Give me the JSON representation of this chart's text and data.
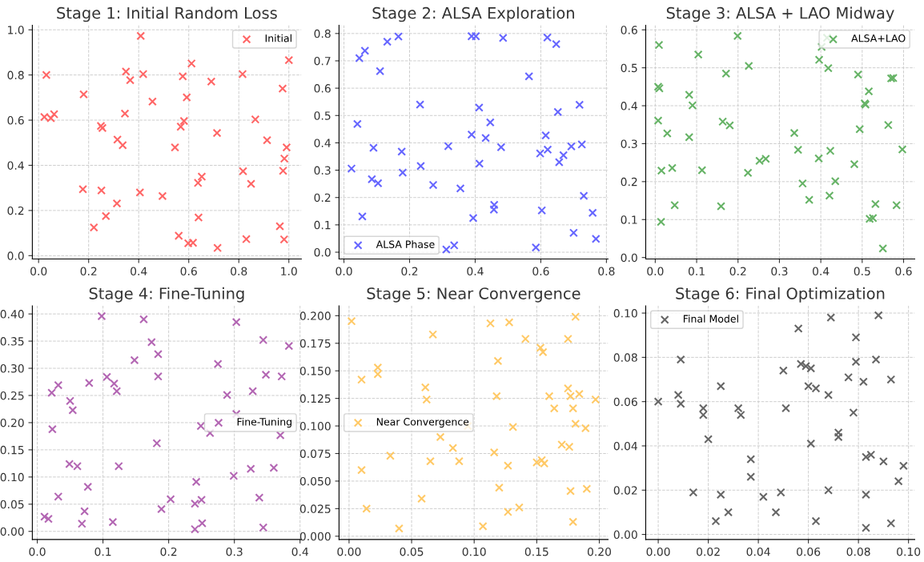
{
  "chart_data": [
    {
      "type": "scatter",
      "title": "Stage 1: Initial Random Loss",
      "legend": "top right",
      "grid": true,
      "marker": "cross",
      "xlim": [
        -0.025,
        1.05
      ],
      "ylim": [
        -0.015,
        1.02
      ],
      "xticks": [
        {
          "value": 0,
          "label": "0.0"
        },
        {
          "value": 0.2,
          "label": "0.2"
        },
        {
          "value": 0.4,
          "label": "0.4"
        },
        {
          "value": 0.6,
          "label": "0.6"
        },
        {
          "value": 0.8,
          "label": "0.8"
        },
        {
          "value": 1,
          "label": "1.0"
        }
      ],
      "yticks": [
        {
          "value": 0,
          "label": "0.0"
        },
        {
          "value": 0.2,
          "label": "0.2"
        },
        {
          "value": 0.4,
          "label": "0.4"
        },
        {
          "value": 0.6,
          "label": "0.6"
        },
        {
          "value": 0.8,
          "label": "0.8"
        },
        {
          "value": 1,
          "label": "1.0"
        }
      ],
      "series": [
        {
          "name": "Initial",
          "color": "#ff6666",
          "x": [
            0.408,
            1.0,
            0.611,
            0.031,
            0.349,
            0.418,
            0.815,
            0.576,
            0.366,
            0.69,
            0.975,
            0.18,
            0.592,
            0.455,
            0.345,
            0.023,
            0.049,
            0.062,
            0.866,
            0.581,
            0.249,
            0.255,
            0.568,
            0.713,
            0.315,
            0.913,
            0.336,
            0.545,
            0.991,
            0.982,
            0.817,
            0.977,
            0.652,
            0.637,
            0.849,
            0.177,
            0.251,
            0.405,
            0.495,
            0.313,
            0.269,
            0.639,
            0.221,
            0.964,
            0.56,
            0.598,
            0.617,
            0.83,
            0.981,
            0.715
          ],
          "values": [
            0.973,
            0.866,
            0.851,
            0.8,
            0.815,
            0.804,
            0.804,
            0.794,
            0.777,
            0.771,
            0.74,
            0.714,
            0.701,
            0.682,
            0.629,
            0.614,
            0.609,
            0.626,
            0.603,
            0.596,
            0.574,
            0.565,
            0.571,
            0.543,
            0.514,
            0.511,
            0.489,
            0.479,
            0.479,
            0.43,
            0.374,
            0.376,
            0.35,
            0.322,
            0.318,
            0.294,
            0.289,
            0.28,
            0.264,
            0.231,
            0.175,
            0.169,
            0.125,
            0.13,
            0.088,
            0.055,
            0.057,
            0.073,
            0.072,
            0.034
          ]
        }
      ]
    },
    {
      "type": "scatter",
      "title": "Stage 2: ALSA Exploration",
      "legend": "bottom left",
      "grid": true,
      "marker": "cross",
      "xlim": [
        -0.015,
        0.805
      ],
      "ylim": [
        -0.025,
        0.83
      ],
      "xticks": [
        {
          "value": 0,
          "label": "0.0"
        },
        {
          "value": 0.2,
          "label": "0.2"
        },
        {
          "value": 0.4,
          "label": "0.4"
        },
        {
          "value": 0.6,
          "label": "0.6"
        },
        {
          "value": 0.8,
          "label": "0.8"
        }
      ],
      "yticks": [
        {
          "value": 0,
          "label": "0.0"
        },
        {
          "value": 0.1,
          "label": "0.1"
        },
        {
          "value": 0.2,
          "label": "0.2"
        },
        {
          "value": 0.3,
          "label": "0.3"
        },
        {
          "value": 0.4,
          "label": "0.4"
        },
        {
          "value": 0.5,
          "label": "0.5"
        },
        {
          "value": 0.6,
          "label": "0.6"
        },
        {
          "value": 0.7,
          "label": "0.7"
        },
        {
          "value": 0.8,
          "label": "0.8"
        }
      ],
      "series": [
        {
          "name": "ALSA Phase",
          "color": "#6666ff",
          "x": [
            0.166,
            0.132,
            0.064,
            0.047,
            0.11,
            0.389,
            0.402,
            0.485,
            0.62,
            0.647,
            0.564,
            0.232,
            0.718,
            0.412,
            0.652,
            0.041,
            0.446,
            0.389,
            0.615,
            0.432,
            0.318,
            0.479,
            0.693,
            0.725,
            0.09,
            0.176,
            0.621,
            0.598,
            0.669,
            0.656,
            0.413,
            0.234,
            0.023,
            0.179,
            0.085,
            0.104,
            0.272,
            0.355,
            0.731,
            0.458,
            0.457,
            0.603,
            0.758,
            0.056,
            0.394,
            0.7,
            0.768,
            0.312,
            0.336,
            0.585
          ],
          "values": [
            0.789,
            0.77,
            0.737,
            0.71,
            0.662,
            0.79,
            0.79,
            0.784,
            0.785,
            0.761,
            0.643,
            0.54,
            0.539,
            0.529,
            0.513,
            0.469,
            0.475,
            0.43,
            0.427,
            0.418,
            0.388,
            0.384,
            0.387,
            0.394,
            0.382,
            0.368,
            0.375,
            0.361,
            0.355,
            0.329,
            0.324,
            0.315,
            0.306,
            0.291,
            0.267,
            0.252,
            0.246,
            0.233,
            0.206,
            0.173,
            0.156,
            0.153,
            0.144,
            0.131,
            0.125,
            0.071,
            0.049,
            0.01,
            0.025,
            0.017
          ]
        }
      ]
    },
    {
      "type": "scatter",
      "title": "Stage 3: ALSA + LAO Midway",
      "legend": "top right",
      "grid": true,
      "marker": "cross",
      "xlim": [
        -0.023,
        0.627
      ],
      "ylim": [
        -0.004,
        0.612
      ],
      "xticks": [
        {
          "value": 0,
          "label": "0.0"
        },
        {
          "value": 0.1,
          "label": "0.1"
        },
        {
          "value": 0.2,
          "label": "0.2"
        },
        {
          "value": 0.3,
          "label": "0.3"
        },
        {
          "value": 0.4,
          "label": "0.4"
        },
        {
          "value": 0.5,
          "label": "0.5"
        },
        {
          "value": 0.6,
          "label": "0.6"
        }
      ],
      "yticks": [
        {
          "value": 0,
          "label": "0.0"
        },
        {
          "value": 0.1,
          "label": "0.1"
        },
        {
          "value": 0.2,
          "label": "0.2"
        },
        {
          "value": 0.3,
          "label": "0.3"
        },
        {
          "value": 0.4,
          "label": "0.4"
        },
        {
          "value": 0.5,
          "label": "0.5"
        },
        {
          "value": 0.6,
          "label": "0.6"
        }
      ],
      "series": [
        {
          "name": "ALSA+LAO",
          "color": "#66b366",
          "x": [
            0.199,
            0.009,
            0.415,
            0.402,
            0.104,
            0.396,
            0.226,
            0.418,
            0.171,
            0.49,
            0.57,
            0.575,
            0.007,
            0.01,
            0.082,
            0.516,
            0.09,
            0.506,
            0.508,
            0.007,
            0.163,
            0.18,
            0.563,
            0.494,
            0.029,
            0.082,
            0.336,
            0.345,
            0.423,
            0.597,
            0.395,
            0.267,
            0.252,
            0.481,
            0.041,
            0.015,
            0.113,
            0.224,
            0.435,
            0.356,
            0.372,
            0.421,
            0.047,
            0.159,
            0.532,
            0.583,
            0.518,
            0.526,
            0.014,
            0.55
          ],
          "values": [
            0.584,
            0.56,
            0.579,
            0.555,
            0.535,
            0.521,
            0.505,
            0.499,
            0.485,
            0.482,
            0.472,
            0.473,
            0.45,
            0.446,
            0.429,
            0.438,
            0.401,
            0.406,
            0.403,
            0.361,
            0.358,
            0.348,
            0.349,
            0.338,
            0.327,
            0.317,
            0.328,
            0.284,
            0.281,
            0.285,
            0.261,
            0.26,
            0.255,
            0.246,
            0.236,
            0.229,
            0.23,
            0.223,
            0.201,
            0.195,
            0.152,
            0.163,
            0.138,
            0.135,
            0.141,
            0.138,
            0.102,
            0.104,
            0.094,
            0.024
          ]
        }
      ]
    },
    {
      "type": "scatter",
      "title": "Stage 4: Fine-Tuning",
      "legend": "right",
      "grid": true,
      "marker": "cross",
      "xlim": [
        -0.0075,
        0.402
      ],
      "ylim": [
        -0.015,
        0.415
      ],
      "xticks": [
        {
          "value": 0,
          "label": "0.0"
        },
        {
          "value": 0.1,
          "label": "0.1"
        },
        {
          "value": 0.2,
          "label": "0.2"
        },
        {
          "value": 0.3,
          "label": "0.3"
        },
        {
          "value": 0.4,
          "label": "0.4"
        }
      ],
      "yticks": [
        {
          "value": 0,
          "label": "0.00"
        },
        {
          "value": 0.05,
          "label": "0.05"
        },
        {
          "value": 0.1,
          "label": "0.10"
        },
        {
          "value": 0.15,
          "label": "0.15"
        },
        {
          "value": 0.2,
          "label": "0.20"
        },
        {
          "value": 0.25,
          "label": "0.25"
        },
        {
          "value": 0.3,
          "label": "0.30"
        },
        {
          "value": 0.35,
          "label": "0.35"
        },
        {
          "value": 0.4,
          "label": "0.40"
        }
      ],
      "series": [
        {
          "name": "Fine-Tuning",
          "color": "#b366b3",
          "x": [
            0.098,
            0.162,
            0.303,
            0.174,
            0.344,
            0.383,
            0.184,
            0.148,
            0.275,
            0.348,
            0.372,
            0.184,
            0.106,
            0.079,
            0.117,
            0.032,
            0.121,
            0.328,
            0.022,
            0.289,
            0.05,
            0.054,
            0.303,
            0.249,
            0.263,
            0.023,
            0.37,
            0.182,
            0.049,
            0.061,
            0.124,
            0.36,
            0.325,
            0.299,
            0.242,
            0.077,
            0.032,
            0.338,
            0.203,
            0.25,
            0.24,
            0.189,
            0.072,
            0.011,
            0.017,
            0.068,
            0.115,
            0.251,
            0.24,
            0.344
          ],
          "values": [
            0.396,
            0.39,
            0.385,
            0.348,
            0.352,
            0.341,
            0.326,
            0.315,
            0.308,
            0.288,
            0.285,
            0.285,
            0.284,
            0.273,
            0.272,
            0.269,
            0.258,
            0.258,
            0.255,
            0.251,
            0.24,
            0.223,
            0.216,
            0.194,
            0.181,
            0.188,
            0.177,
            0.162,
            0.124,
            0.12,
            0.12,
            0.117,
            0.115,
            0.102,
            0.091,
            0.082,
            0.064,
            0.062,
            0.059,
            0.058,
            0.051,
            0.041,
            0.037,
            0.027,
            0.023,
            0.014,
            0.017,
            0.015,
            0.004,
            0.007
          ]
        }
      ]
    },
    {
      "type": "scatter",
      "title": "Stage 5: Near Convergence",
      "legend": "left",
      "grid": true,
      "marker": "cross",
      "xlim": [
        -0.008,
        0.207
      ],
      "ylim": [
        -0.003,
        0.209
      ],
      "xticks": [
        {
          "value": 0,
          "label": "0.00"
        },
        {
          "value": 0.05,
          "label": "0.05"
        },
        {
          "value": 0.1,
          "label": "0.10"
        },
        {
          "value": 0.15,
          "label": "0.15"
        },
        {
          "value": 0.2,
          "label": "0.20"
        }
      ],
      "yticks": [
        {
          "value": 0,
          "label": "0.000"
        },
        {
          "value": 0.025,
          "label": "0.025"
        },
        {
          "value": 0.05,
          "label": "0.050"
        },
        {
          "value": 0.075,
          "label": "0.075"
        },
        {
          "value": 0.1,
          "label": "0.100"
        },
        {
          "value": 0.125,
          "label": "0.125"
        },
        {
          "value": 0.15,
          "label": "0.150"
        },
        {
          "value": 0.175,
          "label": "0.175"
        },
        {
          "value": 0.2,
          "label": "0.200"
        }
      ],
      "series": [
        {
          "name": "Near Convergence",
          "color": "#ffc966",
          "x": [
            0.002,
            0.181,
            0.113,
            0.128,
            0.067,
            0.141,
            0.175,
            0.153,
            0.155,
            0.119,
            0.023,
            0.023,
            0.01,
            0.061,
            0.175,
            0.062,
            0.118,
            0.16,
            0.177,
            0.184,
            0.197,
            0.164,
            0.179,
            0.095,
            0.131,
            0.181,
            0.189,
            0.073,
            0.17,
            0.176,
            0.083,
            0.116,
            0.033,
            0.065,
            0.088,
            0.15,
            0.154,
            0.156,
            0.127,
            0.01,
            0.12,
            0.177,
            0.19,
            0.058,
            0.014,
            0.136,
            0.127,
            0.179,
            0.04,
            0.107
          ],
          "values": [
            0.195,
            0.199,
            0.193,
            0.194,
            0.183,
            0.179,
            0.179,
            0.171,
            0.167,
            0.159,
            0.153,
            0.147,
            0.142,
            0.135,
            0.134,
            0.124,
            0.127,
            0.127,
            0.127,
            0.129,
            0.124,
            0.116,
            0.116,
            0.1,
            0.099,
            0.102,
            0.098,
            0.09,
            0.083,
            0.081,
            0.08,
            0.076,
            0.073,
            0.068,
            0.068,
            0.067,
            0.069,
            0.066,
            0.064,
            0.06,
            0.044,
            0.041,
            0.043,
            0.034,
            0.025,
            0.026,
            0.022,
            0.013,
            0.007,
            0.009
          ]
        }
      ]
    },
    {
      "type": "scatter",
      "title": "Stage 6: Final Optimization",
      "legend": "top left",
      "grid": true,
      "marker": "cross",
      "xlim": [
        -0.005,
        0.1025
      ],
      "ylim": [
        -0.0023,
        0.1033
      ],
      "xticks": [
        {
          "value": 0,
          "label": "0.00"
        },
        {
          "value": 0.02,
          "label": "0.02"
        },
        {
          "value": 0.04,
          "label": "0.04"
        },
        {
          "value": 0.06,
          "label": "0.06"
        },
        {
          "value": 0.08,
          "label": "0.08"
        },
        {
          "value": 0.1,
          "label": "0.10"
        }
      ],
      "yticks": [
        {
          "value": 0,
          "label": "0.00"
        },
        {
          "value": 0.02,
          "label": "0.02"
        },
        {
          "value": 0.04,
          "label": "0.04"
        },
        {
          "value": 0.06,
          "label": "0.06"
        },
        {
          "value": 0.08,
          "label": "0.08"
        },
        {
          "value": 0.1,
          "label": "0.10"
        }
      ],
      "series": [
        {
          "name": "Final Model",
          "color": "#666666",
          "x": [
            0.069,
            0.088,
            0.056,
            0.079,
            0.009,
            0.057,
            0.059,
            0.061,
            0.079,
            0.087,
            0.05,
            0.076,
            0.093,
            0.082,
            0.025,
            0.06,
            0.063,
            0.068,
            0.008,
            0.0,
            0.009,
            0.018,
            0.018,
            0.032,
            0.033,
            0.051,
            0.078,
            0.072,
            0.072,
            0.02,
            0.061,
            0.037,
            0.083,
            0.085,
            0.09,
            0.098,
            0.037,
            0.096,
            0.068,
            0.014,
            0.025,
            0.049,
            0.042,
            0.083,
            0.028,
            0.047,
            0.023,
            0.063,
            0.083,
            0.093
          ],
          "values": [
            0.098,
            0.099,
            0.093,
            0.089,
            0.079,
            0.077,
            0.076,
            0.075,
            0.078,
            0.079,
            0.074,
            0.071,
            0.07,
            0.069,
            0.067,
            0.067,
            0.066,
            0.063,
            0.063,
            0.06,
            0.059,
            0.057,
            0.054,
            0.057,
            0.054,
            0.057,
            0.055,
            0.046,
            0.044,
            0.043,
            0.041,
            0.034,
            0.035,
            0.036,
            0.033,
            0.031,
            0.026,
            0.024,
            0.02,
            0.019,
            0.018,
            0.019,
            0.017,
            0.018,
            0.01,
            0.01,
            0.006,
            0.006,
            0.003,
            0.005
          ]
        }
      ]
    }
  ]
}
